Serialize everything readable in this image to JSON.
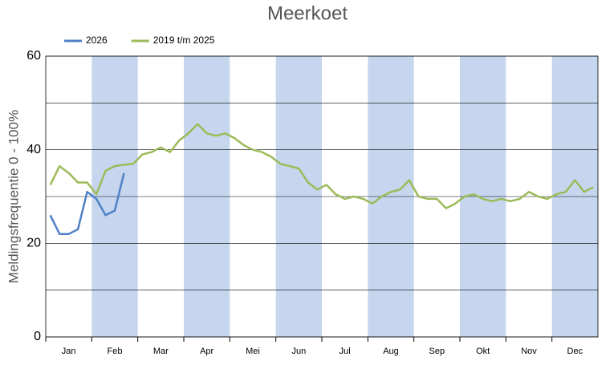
{
  "chart_data": {
    "type": "line",
    "title": "Meerkoet",
    "y_label": "Meldingsfrequentie 0 - 100%",
    "categories": [
      null,
      null,
      "Jan",
      null,
      null,
      null,
      null,
      "Feb",
      null,
      null,
      null,
      null,
      "Mar",
      null,
      null,
      null,
      null,
      "Apr",
      null,
      null,
      null,
      null,
      "Mei",
      null,
      null,
      null,
      null,
      "Jun",
      null,
      null,
      null,
      null,
      "Jul",
      null,
      null,
      null,
      null,
      "Aug",
      null,
      null,
      null,
      null,
      "Sep",
      null,
      null,
      null,
      null,
      "Okt",
      null,
      null,
      null,
      null,
      "Nov",
      null,
      null,
      null,
      null,
      "Dec",
      null,
      null
    ],
    "series": [
      {
        "name": "2026",
        "color": "#4f81c7",
        "values": [
          26,
          22,
          22,
          23,
          31,
          29.5,
          26,
          27,
          35,
          null,
          null,
          null,
          null,
          null,
          null,
          null,
          null,
          null,
          null,
          null,
          null,
          null,
          null,
          null,
          null,
          null,
          null,
          null,
          null,
          null,
          null,
          null,
          null,
          null,
          null,
          null,
          null,
          null,
          null,
          null,
          null,
          null,
          null,
          null,
          null,
          null,
          null,
          null,
          null,
          null,
          null,
          null,
          null,
          null,
          null,
          null,
          null,
          null,
          null,
          null
        ]
      },
      {
        "name": "2019 t/m 2025",
        "color": "#9bbb59",
        "values": [
          32.5,
          36.5,
          35,
          33,
          33,
          30.5,
          35.5,
          36.5,
          36.8,
          37,
          39,
          39.5,
          40.5,
          39.5,
          42,
          43.5,
          45.5,
          43.5,
          43,
          43.5,
          42.5,
          41,
          40,
          39.5,
          38.5,
          37,
          36.5,
          36,
          33,
          31.5,
          32.5,
          30.5,
          29.5,
          30,
          29.5,
          28.5,
          30,
          31,
          31.5,
          33.5,
          30,
          29.5,
          29.5,
          27.5,
          28.5,
          30,
          30.5,
          29.5,
          29,
          29.5,
          29,
          29.5,
          31,
          30,
          29.5,
          30.5,
          31,
          33.5,
          31,
          32
        ]
      }
    ],
    "ylim": [
      0,
      60
    ],
    "yticks": [
      0,
      20,
      40,
      60
    ],
    "grid": true,
    "band_color": "#c6d6ee",
    "legend": "top-left"
  }
}
